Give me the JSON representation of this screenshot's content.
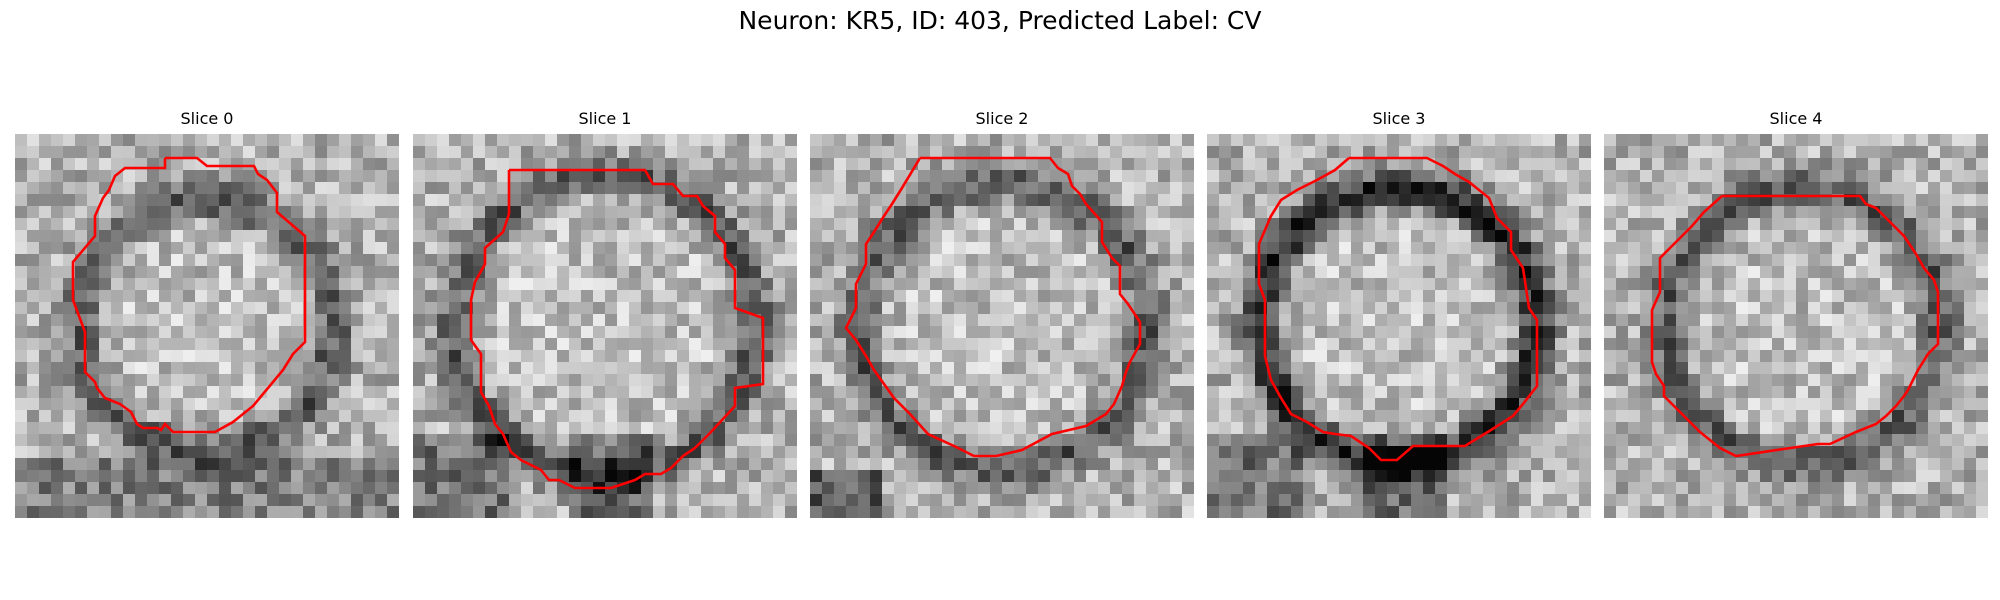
{
  "figure": {
    "title": "Neuron: KR5, ID: 403, Predicted Label: CV"
  },
  "panels": [
    {
      "title": "Slice 0"
    },
    {
      "title": "Slice 1"
    },
    {
      "title": "Slice 2"
    },
    {
      "title": "Slice 3"
    },
    {
      "title": "Slice 4"
    }
  ],
  "colors": {
    "contour": "#ff0000",
    "background": "#ffffff"
  }
}
